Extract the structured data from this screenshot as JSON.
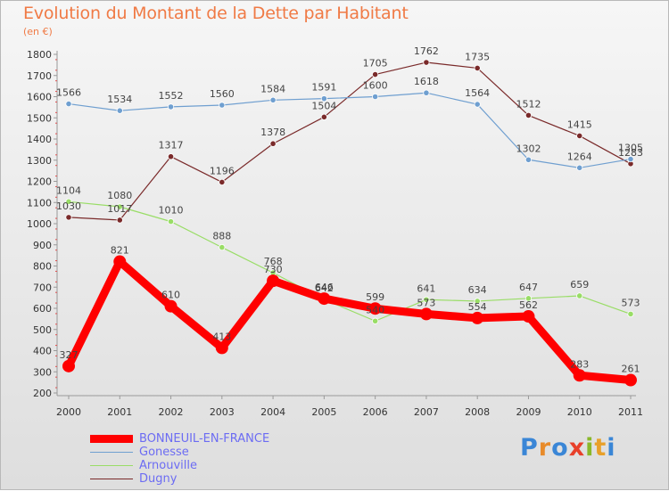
{
  "header": {
    "title": "Evolution du Montant de la Dette par Habitant",
    "unit": "(en €)"
  },
  "logo": {
    "text": "Proxiti",
    "letters": [
      "P",
      "r",
      "o",
      "x",
      "i",
      "t",
      "i"
    ],
    "letter_colors": [
      "#3a86d6",
      "#e88b2a",
      "#3a86d6",
      "#e8402a",
      "#8ab82a",
      "#e8a02a",
      "#3a86d6"
    ]
  },
  "chart_data": {
    "type": "line",
    "title": "Evolution du Montant de la Dette par Habitant",
    "subtitle": "(en €)",
    "xlabel": "",
    "ylabel": "",
    "x": [
      2000,
      2001,
      2002,
      2003,
      2004,
      2005,
      2006,
      2007,
      2008,
      2009,
      2010,
      2011
    ],
    "ylim": [
      200,
      1800
    ],
    "yticks": [
      200,
      300,
      400,
      500,
      600,
      700,
      800,
      900,
      1000,
      1100,
      1200,
      1300,
      1400,
      1500,
      1600,
      1700,
      1800
    ],
    "grid": false,
    "legend_position": "bottom-left",
    "series": [
      {
        "name": "BONNEUIL-EN-FRANCE",
        "color": "#ff0000",
        "values": [
          327,
          821,
          610,
          413,
          730,
          646,
          599,
          573,
          554,
          562,
          283,
          261
        ],
        "labels": [
          "327",
          "821",
          "610",
          "413",
          "730",
          "646",
          "599",
          "573",
          "554",
          "562",
          "283",
          "261"
        ]
      },
      {
        "name": "Gonesse",
        "color": "#6f9fd0",
        "values": [
          1566,
          1534,
          1552,
          1560,
          1584,
          1591,
          1600,
          1618,
          1564,
          1302,
          1264,
          1305
        ],
        "labels": [
          "1566",
          "1534",
          "1552",
          "1560",
          "1584",
          "1591",
          "1600",
          "1618",
          "1564",
          "1302",
          "1264",
          "1305"
        ]
      },
      {
        "name": "Arnouville",
        "color": "#99dd66",
        "values": [
          1104,
          1080,
          1010,
          888,
          768,
          642,
          540,
          641,
          634,
          647,
          659,
          573
        ],
        "labels": [
          "1104",
          "1080",
          "1010",
          "888",
          "768",
          "642",
          "540",
          "641",
          "634",
          "647",
          "659",
          "573"
        ]
      },
      {
        "name": "Dugny",
        "color": "#7a2a2a",
        "values": [
          1030,
          1017,
          1317,
          1196,
          1378,
          1504,
          1705,
          1762,
          1735,
          1512,
          1415,
          1283
        ],
        "labels": [
          "1030",
          "1017",
          "1317",
          "1196",
          "1378",
          "1504",
          "1705",
          "1762",
          "1735",
          "1512",
          "1415",
          "1283"
        ]
      }
    ]
  }
}
